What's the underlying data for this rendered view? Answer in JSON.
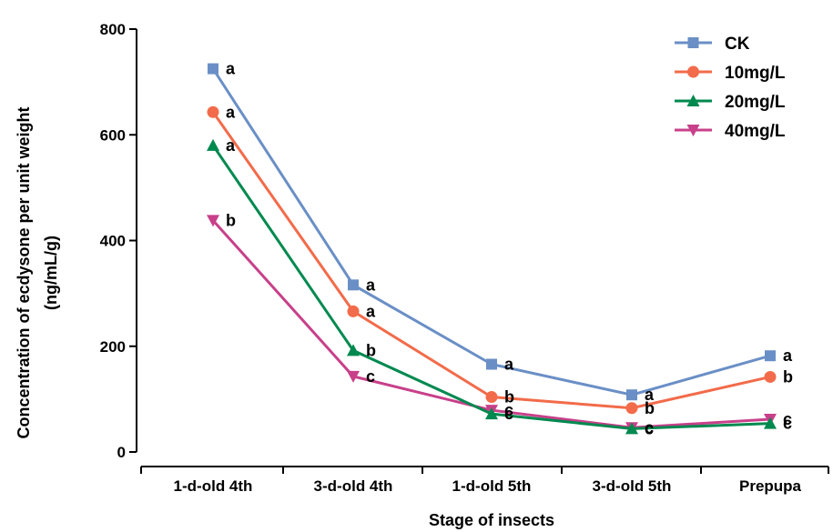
{
  "chart_data": {
    "type": "line",
    "title": "",
    "xlabel": "Stage of insects",
    "ylabel_line1": "Concentration of ecdysone per unit weight",
    "ylabel_line2": "(ng/mL/g)",
    "categories": [
      "1-d-old 4th",
      "3-d-old 4th",
      "1-d-old 5th",
      "3-d-old 5th",
      "Prepupa"
    ],
    "ylim": [
      0,
      800
    ],
    "yticks": [
      "0",
      "200",
      "400",
      "600",
      "800"
    ],
    "grid": false,
    "legend_position": "top-right",
    "series": [
      {
        "name": "CK",
        "color": "#6a8fc6",
        "marker": "square",
        "values": [
          725,
          316,
          166,
          108,
          182
        ],
        "labels": [
          "a",
          "a",
          "a",
          "a",
          "a"
        ]
      },
      {
        "name": "10mg/L",
        "color": "#f26b4a",
        "marker": "circle",
        "values": [
          643,
          266,
          104,
          83,
          142
        ],
        "labels": [
          "a",
          "a",
          "b",
          "b",
          "b"
        ]
      },
      {
        "name": "20mg/L",
        "color": "#00894f",
        "marker": "triangle-up",
        "values": [
          580,
          192,
          72,
          44,
          54
        ],
        "labels": [
          "a",
          "b",
          "c",
          "c",
          "c"
        ]
      },
      {
        "name": "40mg/L",
        "color": "#c8408a",
        "marker": "triangle-down",
        "values": [
          438,
          143,
          79,
          46,
          62
        ],
        "labels": [
          "b",
          "c",
          "c",
          "c",
          "c"
        ]
      }
    ]
  }
}
